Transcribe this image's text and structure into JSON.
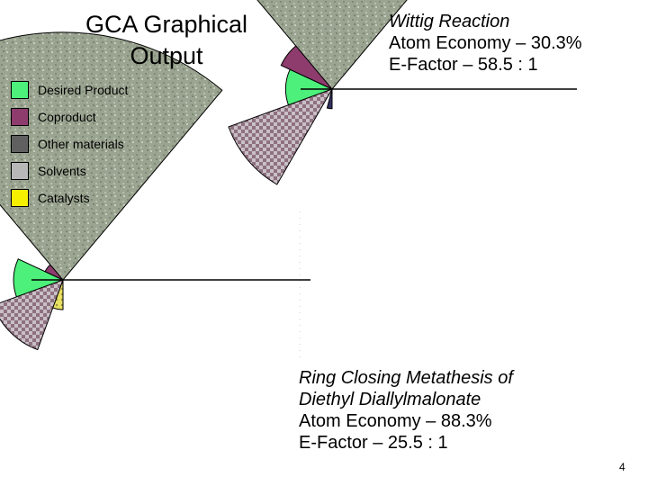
{
  "page": {
    "title_line1": "GCA Graphical",
    "title_line2": "Output",
    "page_number": "4"
  },
  "legend": [
    {
      "label": "Desired Product",
      "color": "#4cf07a"
    },
    {
      "label": "Coproduct",
      "color": "#8e3c6e"
    },
    {
      "label": "Other materials",
      "color": "#606060"
    },
    {
      "label": "Solvents",
      "color": "#b8b8b8"
    },
    {
      "label": "Catalysts",
      "color": "#f4f000"
    }
  ],
  "chart_data": [
    {
      "type": "pie",
      "variant": "polar-area",
      "name_line1": "Wittig Reaction",
      "atom_economy": "Atom Economy – 30.3%",
      "e_factor": "E-Factor – 58.5 : 1",
      "radius_scale": "relative sector radius",
      "sectors": [
        {
          "category": "Desired Product",
          "radius": 0.19,
          "color": "#4cf07a",
          "pattern": "solid"
        },
        {
          "category": "Coproduct",
          "radius": 0.23,
          "color": "#8e3c6e",
          "pattern": "solid"
        },
        {
          "category": "Other materials",
          "radius": 0.08,
          "color": "#303060",
          "pattern": "solid"
        },
        {
          "category": "Catalysts",
          "radius": 0.0,
          "color": "#f4f000",
          "pattern": "solid"
        },
        {
          "category": "Solvents",
          "radius": 0.45,
          "color": "#8e7080",
          "pattern": "checker"
        },
        {
          "category": "Solvents",
          "radius": 1.0,
          "color": "#9aa490",
          "pattern": "noise"
        }
      ]
    },
    {
      "type": "pie",
      "variant": "polar-area",
      "name_line1": "Ring Closing Metathesis of",
      "name_line2": "Diethyl Diallylmalonate",
      "atom_economy": "Atom Economy – 88.3%",
      "e_factor": "E-Factor – 25.5 : 1",
      "radius_scale": "relative sector radius",
      "sectors": [
        {
          "category": "Desired Product",
          "radius": 0.2,
          "color": "#4cf07a",
          "pattern": "solid"
        },
        {
          "category": "Coproduct",
          "radius": 0.08,
          "color": "#8e3c6e",
          "pattern": "solid"
        },
        {
          "category": "Catalysts",
          "radius": 0.12,
          "color": "#e8e060",
          "pattern": "dots"
        },
        {
          "category": "Solvents",
          "radius": 0.3,
          "color": "#8e7080",
          "pattern": "checker"
        },
        {
          "category": "Solvents",
          "radius": 1.0,
          "color": "#9aa490",
          "pattern": "noise"
        }
      ]
    }
  ]
}
